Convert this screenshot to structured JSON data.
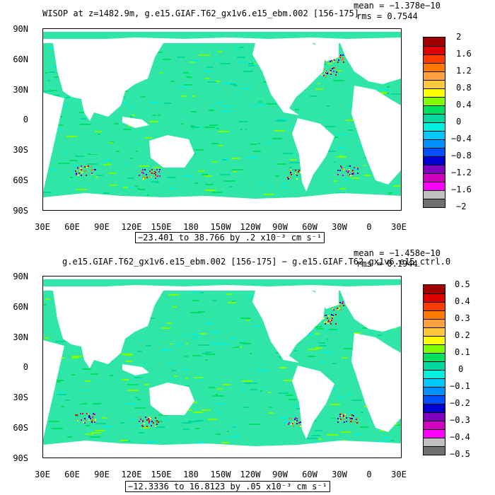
{
  "panels": [
    {
      "title": "WISOP at z=1482.9m, g.e15.GIAF.T62_gx1v6.e15_ebm.002 [156-175]",
      "mean_text": "mean = −1.378e−10",
      "rms_text": "rms = 0.7544",
      "range_text": "−23.401 to 38.766 by .2 x10⁻³ cm s⁻¹",
      "colorbar_labels": [
        "2",
        "1.6",
        "1.2",
        "0.8",
        "0.4",
        "0",
        "−0.4",
        "−0.8",
        "−1.2",
        "−1.6",
        "−2"
      ]
    },
    {
      "title": "g.e15.GIAF.T62_gx1v6.e15_ebm.002 [156-175] − g.e15.GIAF.T62_gx1v6.e15_ctrl.0",
      "mean_text": "mean = −1.458e−10",
      "rms_text": "rms = 0.1944",
      "range_text": "−12.3336 to 16.8123 by .05 x10⁻³ cm s⁻¹",
      "colorbar_labels": [
        "0.5",
        "0.4",
        "0.3",
        "0.2",
        "0.1",
        "0",
        "−0.1",
        "−0.2",
        "−0.3",
        "−0.4",
        "−0.5"
      ]
    }
  ],
  "y_ticks": [
    "90N",
    "60N",
    "30N",
    "0",
    "30S",
    "60S",
    "90S"
  ],
  "x_ticks": [
    "30E",
    "60E",
    "90E",
    "120E",
    "150E",
    "180",
    "150W",
    "120W",
    "90W",
    "60W",
    "30W",
    "0",
    "30E"
  ],
  "colorbar_colors": [
    "#a00000",
    "#e00000",
    "#ff3c00",
    "#ff7800",
    "#ffa040",
    "#ffc83c",
    "#ffff00",
    "#80ff00",
    "#00e060",
    "#00d8a0",
    "#00f0e0",
    "#00c8ff",
    "#0090ff",
    "#0050ff",
    "#0000d0",
    "#8000c0",
    "#d000c0",
    "#ff00ff",
    "#c0c0c0",
    "#707070"
  ],
  "colors": {
    "ocean": "#2fe6a6",
    "land": "#ffffff",
    "accent": "#00e060"
  }
}
